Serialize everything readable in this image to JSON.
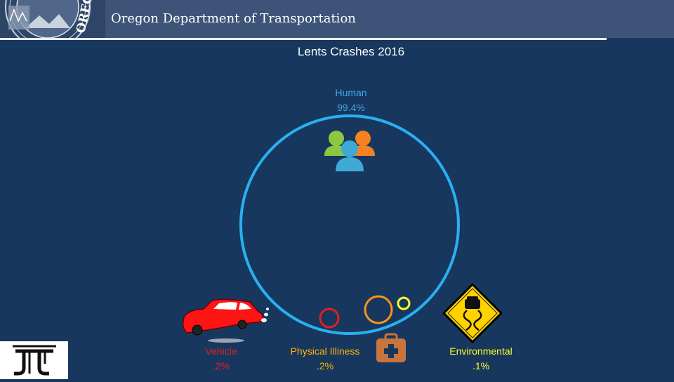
{
  "header": {
    "agency_name": "Oregon Department of Transportation",
    "seal_text": "OREGON"
  },
  "main": {
    "title": "Lents Crashes 2016",
    "categories": [
      {
        "name": "Human",
        "value": "99.4%",
        "icon": "people-group-icon",
        "color": "#3fa9e8"
      },
      {
        "name": "Vehicle",
        "value": ".2%",
        "icon": "red-car-icon",
        "color": "#e02020"
      },
      {
        "name": "Physical Illiness",
        "value": ".2%",
        "icon": "first-aid-kit-icon",
        "color": "#ffb400"
      },
      {
        "name": "Environmental",
        "value": ".1%",
        "icon": "slippery-road-sign-icon",
        "color": "#ffff2a"
      }
    ]
  },
  "footer": {
    "logo_icon": "odot-logo-icon"
  }
}
